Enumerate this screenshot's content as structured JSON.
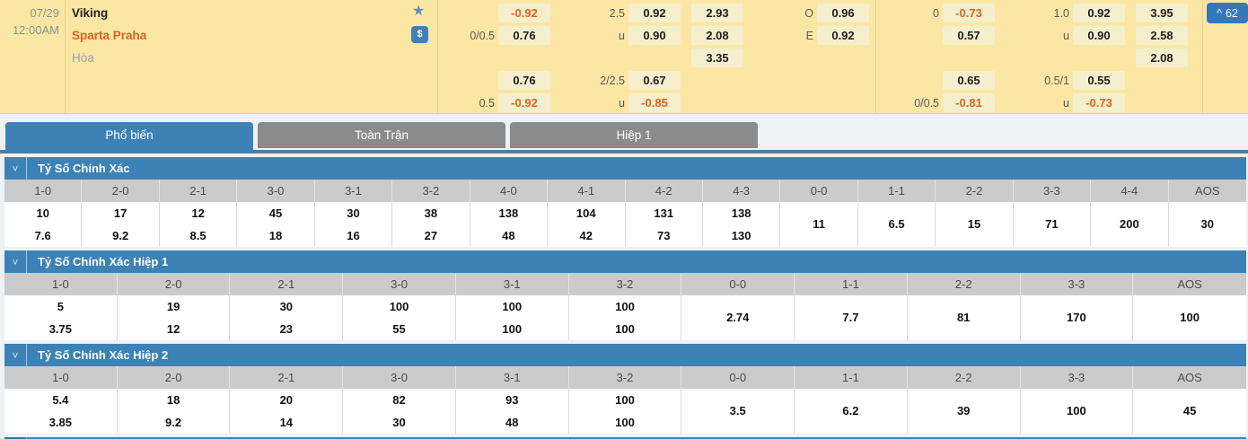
{
  "colors": {
    "accent_blue": "#3C82B6",
    "tab_inactive_gray": "#8B8B8B",
    "panel_yellow": "#FBE7A3",
    "odds_chip_bg": "#F5EFCE",
    "negative_orange": "#E0621C",
    "underline_blue": "#4A7FA9",
    "table_header_gray": "#CBCBCB"
  },
  "icons": {
    "star": "★",
    "dollar": "$",
    "chevron_down": "˅",
    "chevron_up": "^"
  },
  "match": {
    "date": "07/29",
    "time": "12:00AM",
    "home": "Viking",
    "away": "Sparta Praha",
    "draw_label": "Hòa",
    "more_bets_count": "62",
    "full_time": {
      "hdp": [
        {
          "label": "",
          "value": "-0.92",
          "neg": true
        },
        {
          "label": "0/0.5",
          "value": "0.76"
        },
        null,
        {
          "label": "",
          "value": "0.76"
        },
        {
          "label": "0.5",
          "value": "-0.92",
          "neg": true
        }
      ],
      "ou": [
        {
          "label": "2.5",
          "value": "0.92"
        },
        {
          "label": "u",
          "value": "0.90"
        },
        null,
        {
          "label": "2/2.5",
          "value": "0.67"
        },
        {
          "label": "u",
          "value": "-0.85",
          "neg": true
        }
      ],
      "x12": [
        {
          "label": "",
          "value": "2.93"
        },
        {
          "label": "",
          "value": "2.08"
        },
        {
          "label": "",
          "value": "3.35"
        },
        null,
        null
      ],
      "oe": [
        {
          "label": "O",
          "value": "0.96"
        },
        {
          "label": "E",
          "value": "0.92"
        },
        null,
        null,
        null
      ]
    },
    "first_half": {
      "hdp": [
        {
          "label": "0",
          "value": "-0.73",
          "neg": true
        },
        {
          "label": "",
          "value": "0.57"
        },
        null,
        {
          "label": "",
          "value": "0.65"
        },
        {
          "label": "0/0.5",
          "value": "-0.81",
          "neg": true
        }
      ],
      "ou": [
        {
          "label": "1.0",
          "value": "0.92"
        },
        {
          "label": "u",
          "value": "0.90"
        },
        null,
        {
          "label": "0.5/1",
          "value": "0.55"
        },
        {
          "label": "u",
          "value": "-0.73",
          "neg": true
        }
      ],
      "x12": [
        {
          "label": "",
          "value": "3.95"
        },
        {
          "label": "",
          "value": "2.58"
        },
        {
          "label": "",
          "value": "2.08"
        },
        null,
        null
      ]
    }
  },
  "tabs": [
    {
      "label": "Phổ biến",
      "active": true
    },
    {
      "label": "Toàn Trận",
      "active": false
    },
    {
      "label": "Hiệp 1",
      "active": false
    }
  ],
  "sections": [
    {
      "title": "Tỷ Số Chính Xác",
      "columns": [
        {
          "score": "1-0",
          "values": [
            "10",
            "7.6"
          ]
        },
        {
          "score": "2-0",
          "values": [
            "17",
            "9.2"
          ]
        },
        {
          "score": "2-1",
          "values": [
            "12",
            "8.5"
          ]
        },
        {
          "score": "3-0",
          "values": [
            "45",
            "18"
          ]
        },
        {
          "score": "3-1",
          "values": [
            "30",
            "16"
          ]
        },
        {
          "score": "3-2",
          "values": [
            "38",
            "27"
          ]
        },
        {
          "score": "4-0",
          "values": [
            "138",
            "48"
          ]
        },
        {
          "score": "4-1",
          "values": [
            "104",
            "42"
          ]
        },
        {
          "score": "4-2",
          "values": [
            "131",
            "73"
          ]
        },
        {
          "score": "4-3",
          "values": [
            "138",
            "130"
          ]
        },
        {
          "score": "0-0",
          "values": [
            "11"
          ]
        },
        {
          "score": "1-1",
          "values": [
            "6.5"
          ]
        },
        {
          "score": "2-2",
          "values": [
            "15"
          ]
        },
        {
          "score": "3-3",
          "values": [
            "71"
          ]
        },
        {
          "score": "4-4",
          "values": [
            "200"
          ]
        },
        {
          "score": "AOS",
          "values": [
            "30"
          ]
        }
      ]
    },
    {
      "title": "Tỷ Số Chính Xác Hiệp 1",
      "columns": [
        {
          "score": "1-0",
          "values": [
            "5",
            "3.75"
          ]
        },
        {
          "score": "2-0",
          "values": [
            "19",
            "12"
          ]
        },
        {
          "score": "2-1",
          "values": [
            "30",
            "23"
          ]
        },
        {
          "score": "3-0",
          "values": [
            "100",
            "55"
          ]
        },
        {
          "score": "3-1",
          "values": [
            "100",
            "100"
          ]
        },
        {
          "score": "3-2",
          "values": [
            "100",
            "100"
          ]
        },
        {
          "score": "0-0",
          "values": [
            "2.74"
          ]
        },
        {
          "score": "1-1",
          "values": [
            "7.7"
          ]
        },
        {
          "score": "2-2",
          "values": [
            "81"
          ]
        },
        {
          "score": "3-3",
          "values": [
            "170"
          ]
        },
        {
          "score": "AOS",
          "values": [
            "100"
          ]
        }
      ]
    },
    {
      "title": "Tỷ Số Chính Xác Hiệp 2",
      "columns": [
        {
          "score": "1-0",
          "values": [
            "5.4",
            "3.85"
          ]
        },
        {
          "score": "2-0",
          "values": [
            "18",
            "9.2"
          ]
        },
        {
          "score": "2-1",
          "values": [
            "20",
            "14"
          ]
        },
        {
          "score": "3-0",
          "values": [
            "82",
            "30"
          ]
        },
        {
          "score": "3-1",
          "values": [
            "93",
            "48"
          ]
        },
        {
          "score": "3-2",
          "values": [
            "100",
            "100"
          ]
        },
        {
          "score": "0-0",
          "values": [
            "3.5"
          ]
        },
        {
          "score": "1-1",
          "values": [
            "6.2"
          ]
        },
        {
          "score": "2-2",
          "values": [
            "39"
          ]
        },
        {
          "score": "3-3",
          "values": [
            "100"
          ]
        },
        {
          "score": "AOS",
          "values": [
            "45"
          ]
        }
      ]
    }
  ]
}
